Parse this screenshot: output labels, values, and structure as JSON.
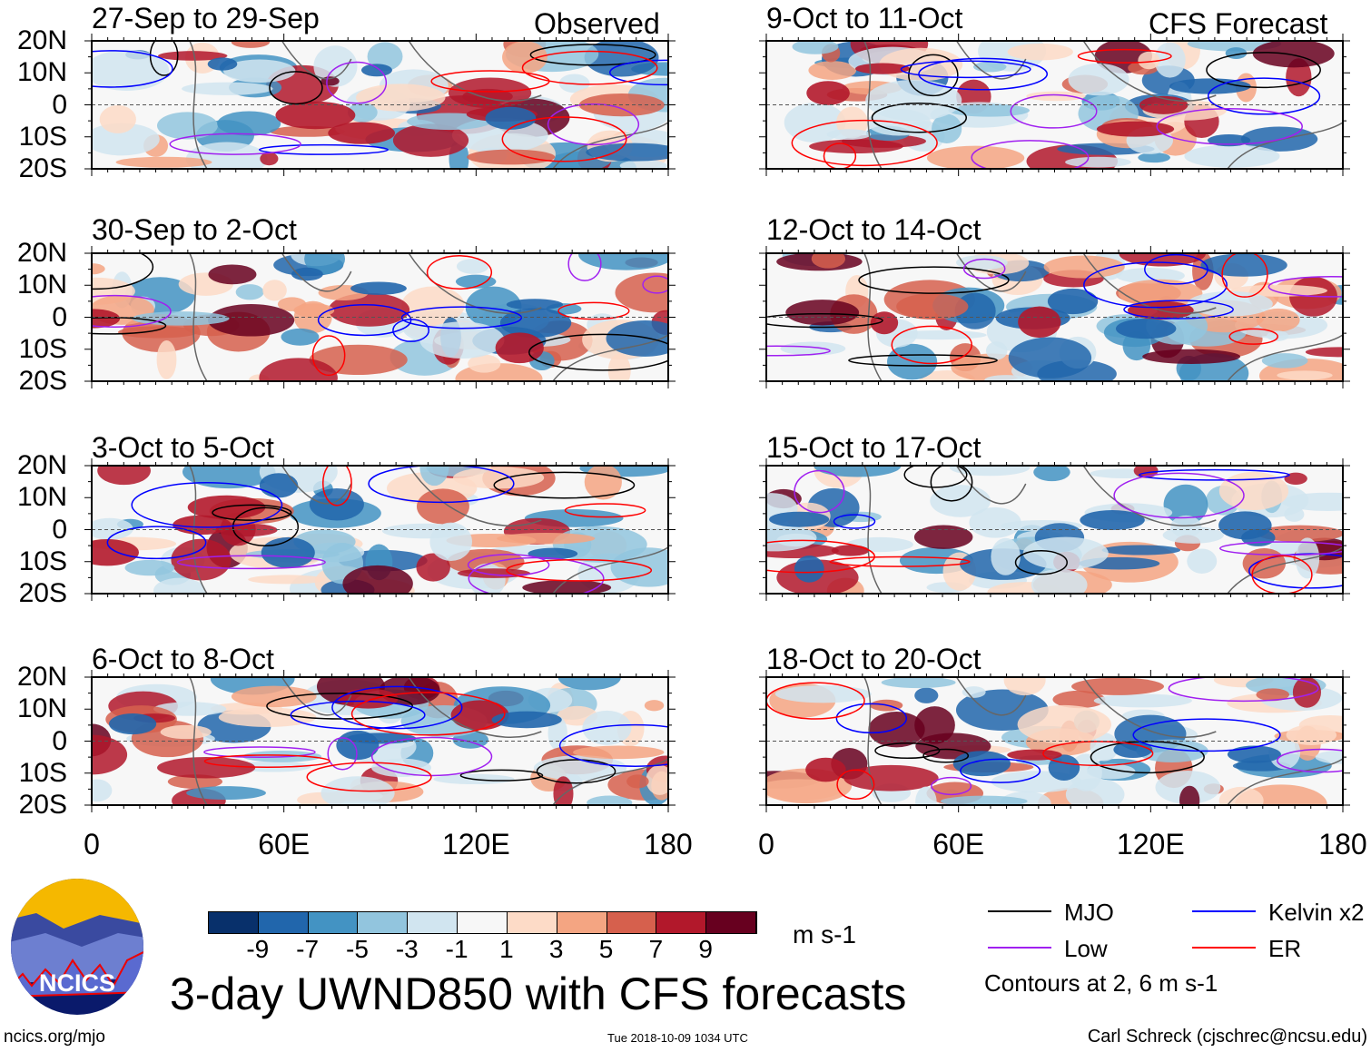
{
  "figure": {
    "title": "3-day UWND850 with CFS forecasts",
    "timestamp": "Tue 2018-10-09 1034 UTC",
    "url": "ncics.org/mjo",
    "credit": "Carl Schreck (cjschrec@ncsu.edu)",
    "logo_text": "NCICS"
  },
  "columns": [
    {
      "label": "Observed"
    },
    {
      "label": "CFS Forecast"
    }
  ],
  "panels": [
    {
      "title": "27-Sep to 29-Sep",
      "column": 0,
      "row": 0
    },
    {
      "title": "30-Sep to 2-Oct",
      "column": 0,
      "row": 1
    },
    {
      "title": "3-Oct to 5-Oct",
      "column": 0,
      "row": 2
    },
    {
      "title": "6-Oct to 8-Oct",
      "column": 0,
      "row": 3
    },
    {
      "title": "9-Oct to 11-Oct",
      "column": 1,
      "row": 0
    },
    {
      "title": "12-Oct to 14-Oct",
      "column": 1,
      "row": 1
    },
    {
      "title": "15-Oct to 17-Oct",
      "column": 1,
      "row": 2
    },
    {
      "title": "18-Oct to 20-Oct",
      "column": 1,
      "row": 3
    }
  ],
  "lat_labels": [
    "20N",
    "10N",
    "0",
    "10S",
    "20S"
  ],
  "lon_labels": [
    "0",
    "60E",
    "120E",
    "180"
  ],
  "colorbar": {
    "unit": "m s-1",
    "ticks": [
      "-9",
      "-7",
      "-5",
      "-3",
      "-1",
      "1",
      "3",
      "5",
      "7",
      "9"
    ],
    "colors": [
      "#08306b",
      "#2166ac",
      "#4393c3",
      "#92c5de",
      "#d1e5f0",
      "#f7f7f7",
      "#fddbc7",
      "#f4a582",
      "#d6604d",
      "#b2182b",
      "#67001f"
    ]
  },
  "legend": {
    "items": [
      {
        "label": "MJO",
        "color": "#000000"
      },
      {
        "label": "Kelvin x2",
        "color": "#0000ff"
      },
      {
        "label": "Low",
        "color": "#a020f0"
      },
      {
        "label": "ER",
        "color": "#ff0000"
      }
    ],
    "note": "Contours at 2, 6 m s-1"
  }
}
